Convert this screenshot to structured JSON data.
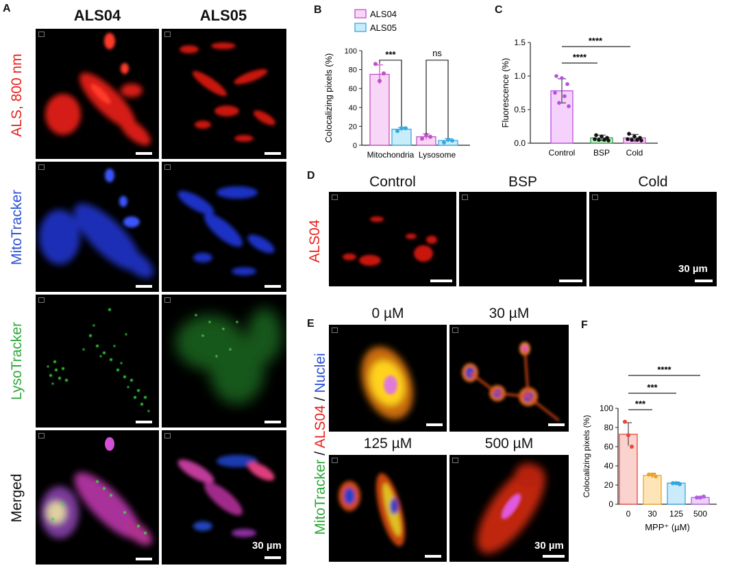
{
  "panels": {
    "A": "A",
    "B": "B",
    "C": "C",
    "D": "D",
    "E": "E",
    "F": "F"
  },
  "panel_a": {
    "col_headers": [
      "ALS04",
      "ALS05"
    ],
    "row_labels": [
      "ALS, 800 nm",
      "MitoTracker",
      "LysoTracker",
      "Merged"
    ],
    "scale_bar": "30 µm"
  },
  "panel_d": {
    "col_headers": [
      "Control",
      "BSP",
      "Cold"
    ],
    "row_label": "ALS04",
    "scale_bar": "30 µm"
  },
  "panel_e": {
    "headers": [
      "0 µM",
      "30 µM",
      "125 µM",
      "500 µM"
    ],
    "row_label": {
      "part1": "MitoTracker",
      "sep1": " / ",
      "part2": "ALS04",
      "sep2": " / ",
      "part3": "Nuclei"
    },
    "scale_bar": "30 µm"
  },
  "colors": {
    "als": "#e8211c",
    "mito": "#2b4fd6",
    "lyso": "#2ea83a",
    "als04": "#c24fc9",
    "als05": "#38a9e0"
  },
  "chart_data": [
    {
      "panel": "B",
      "type": "bar",
      "categories": [
        "Mitochondria",
        "Lysosome"
      ],
      "ylabel": "Colocalizing pixels (%)",
      "ylim": [
        0,
        100
      ],
      "yticks": [
        0,
        20,
        40,
        60,
        80,
        100
      ],
      "series": [
        {
          "name": "ALS04",
          "values": [
            75,
            9
          ],
          "errors": [
            10,
            3
          ],
          "points": [
            [
              86,
              68,
              76
            ],
            [
              7,
              11,
              9
            ]
          ],
          "fill": "#f8d6f6",
          "stroke": "#c24fc9"
        },
        {
          "name": "ALS05",
          "values": [
            17,
            5
          ],
          "errors": [
            2,
            2
          ],
          "points": [
            [
              15,
              18,
              18
            ],
            [
              3,
              6,
              5
            ]
          ],
          "fill": "#c9ecfa",
          "stroke": "#38a9e0"
        }
      ],
      "significance": [
        "***",
        "ns"
      ]
    },
    {
      "panel": "C",
      "type": "bar",
      "categories": [
        "Control",
        "BSP",
        "Cold"
      ],
      "ylabel": "Fluorescence (%)",
      "ylim": [
        0,
        1.5
      ],
      "yticks": [
        "0.0",
        "0.5",
        "1.0",
        "1.5"
      ],
      "values": [
        0.78,
        0.08,
        0.08
      ],
      "errors": [
        0.18,
        0.04,
        0.05
      ],
      "points": [
        [
          1.0,
          0.97,
          0.88,
          0.75,
          0.7,
          0.6,
          0.55
        ],
        [
          0.12,
          0.1,
          0.08,
          0.06,
          0.05,
          0.05,
          0.04
        ],
        [
          0.14,
          0.1,
          0.08,
          0.06,
          0.05,
          0.05,
          0.04
        ]
      ],
      "fill": [
        "#f5d2fb",
        "#cdeecf",
        "#f9d4f6"
      ],
      "stroke": [
        "#b74fe0",
        "#2fa040",
        "#c24fc9"
      ],
      "significance": [
        "****",
        "****"
      ]
    },
    {
      "panel": "F",
      "type": "bar",
      "categories": [
        "0",
        "30",
        "125",
        "500"
      ],
      "xlabel": "MPP⁺ (µM)",
      "ylabel": "Colocalizing pixels (%)",
      "ylim": [
        0,
        100
      ],
      "yticks": [
        0,
        20,
        40,
        60,
        80,
        100
      ],
      "values": [
        73,
        30,
        22,
        7
      ],
      "errors": [
        12,
        2,
        1,
        1
      ],
      "points": [
        [
          86,
          72,
          60
        ],
        [
          31,
          31,
          29
        ],
        [
          22,
          22,
          21
        ],
        [
          7,
          7,
          8
        ]
      ],
      "fill": [
        "#fbd3ce",
        "#fde5b8",
        "#cbeafa",
        "#ead1fa"
      ],
      "stroke": [
        "#e8463a",
        "#f4a21d",
        "#2fa8e6",
        "#b45ce3"
      ],
      "significance": [
        "***",
        "***",
        "****"
      ]
    }
  ]
}
